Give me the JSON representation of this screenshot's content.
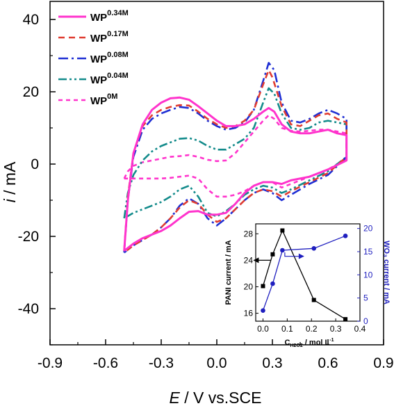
{
  "chart_data": {
    "type": "line",
    "xlabel_italic": "E",
    "xlabel_rest": " / V vs.SCE",
    "ylabel_italic": "i",
    "ylabel_rest": " / mA",
    "xlim": [
      -0.9,
      0.9
    ],
    "ylim": [
      -50,
      45
    ],
    "x_ticks": [
      "-0.9",
      "-0.6",
      "-0.3",
      "0.0",
      "0.3",
      "0.6",
      "0.9"
    ],
    "y_ticks": [
      "40",
      "20",
      "0",
      "-20",
      "-40"
    ],
    "legend_placement": "top-left",
    "series": [
      {
        "name_main": "WP",
        "name_sup": "0.34M",
        "color": "#ff33cc",
        "style": "solid",
        "points": [
          [
            -0.5,
            -24
          ],
          [
            -0.48,
            -10
          ],
          [
            -0.45,
            3
          ],
          [
            -0.4,
            11
          ],
          [
            -0.35,
            15
          ],
          [
            -0.3,
            17
          ],
          [
            -0.25,
            18.2
          ],
          [
            -0.2,
            18.4
          ],
          [
            -0.15,
            17.8
          ],
          [
            -0.1,
            16
          ],
          [
            -0.05,
            14
          ],
          [
            0.0,
            12
          ],
          [
            0.05,
            10.5
          ],
          [
            0.1,
            10.5
          ],
          [
            0.15,
            11
          ],
          [
            0.2,
            12.5
          ],
          [
            0.25,
            14.5
          ],
          [
            0.28,
            15.5
          ],
          [
            0.31,
            14.5
          ],
          [
            0.35,
            11
          ],
          [
            0.4,
            9
          ],
          [
            0.45,
            8.5
          ],
          [
            0.5,
            8.5
          ],
          [
            0.55,
            9
          ],
          [
            0.6,
            9.5
          ],
          [
            0.65,
            8.5
          ],
          [
            0.7,
            8
          ],
          [
            0.7,
            1
          ],
          [
            0.6,
            -1.5
          ],
          [
            0.5,
            -3.5
          ],
          [
            0.4,
            -4.5
          ],
          [
            0.35,
            -5.5
          ],
          [
            0.3,
            -5
          ],
          [
            0.25,
            -5
          ],
          [
            0.2,
            -6
          ],
          [
            0.15,
            -8
          ],
          [
            0.1,
            -11
          ],
          [
            0.05,
            -13.5
          ],
          [
            0.0,
            -14
          ],
          [
            -0.05,
            -14
          ],
          [
            -0.1,
            -13
          ],
          [
            -0.15,
            -13.2
          ],
          [
            -0.2,
            -15
          ],
          [
            -0.25,
            -17
          ],
          [
            -0.3,
            -18.5
          ],
          [
            -0.35,
            -19.5
          ],
          [
            -0.4,
            -20.5
          ],
          [
            -0.45,
            -22
          ],
          [
            -0.5,
            -24
          ]
        ]
      },
      {
        "name_main": "WP",
        "name_sup": "0.17M",
        "color": "#e03c31",
        "style": "dash",
        "points": [
          [
            -0.5,
            -24
          ],
          [
            -0.48,
            -9
          ],
          [
            -0.45,
            3
          ],
          [
            -0.4,
            10.5
          ],
          [
            -0.35,
            13.5
          ],
          [
            -0.3,
            15
          ],
          [
            -0.25,
            15.8
          ],
          [
            -0.2,
            16.3
          ],
          [
            -0.15,
            16.2
          ],
          [
            -0.1,
            14.5
          ],
          [
            -0.05,
            12.5
          ],
          [
            0.0,
            11
          ],
          [
            0.05,
            10
          ],
          [
            0.1,
            10.5
          ],
          [
            0.15,
            12
          ],
          [
            0.2,
            15
          ],
          [
            0.25,
            22
          ],
          [
            0.28,
            26
          ],
          [
            0.3,
            24
          ],
          [
            0.35,
            16
          ],
          [
            0.4,
            11
          ],
          [
            0.45,
            10.5
          ],
          [
            0.5,
            12
          ],
          [
            0.55,
            13.5
          ],
          [
            0.6,
            14
          ],
          [
            0.65,
            12.5
          ],
          [
            0.7,
            11.5
          ],
          [
            0.7,
            2
          ],
          [
            0.6,
            -2.5
          ],
          [
            0.5,
            -5
          ],
          [
            0.4,
            -7.5
          ],
          [
            0.35,
            -9
          ],
          [
            0.3,
            -7.5
          ],
          [
            0.25,
            -7
          ],
          [
            0.2,
            -8
          ],
          [
            0.15,
            -10
          ],
          [
            0.1,
            -12.5
          ],
          [
            0.05,
            -15
          ],
          [
            0.0,
            -16
          ],
          [
            -0.05,
            -14
          ],
          [
            -0.1,
            -11
          ],
          [
            -0.15,
            -10
          ],
          [
            -0.2,
            -12
          ],
          [
            -0.25,
            -15
          ],
          [
            -0.3,
            -17.5
          ],
          [
            -0.35,
            -19.5
          ],
          [
            -0.4,
            -21
          ],
          [
            -0.45,
            -22.5
          ],
          [
            -0.5,
            -24.5
          ]
        ]
      },
      {
        "name_main": "WP",
        "name_sup": "0.08M",
        "color": "#1f2fd4",
        "style": "dashdot",
        "points": [
          [
            -0.5,
            -24.5
          ],
          [
            -0.48,
            -10
          ],
          [
            -0.45,
            2
          ],
          [
            -0.4,
            9.5
          ],
          [
            -0.35,
            12.5
          ],
          [
            -0.3,
            14
          ],
          [
            -0.25,
            15
          ],
          [
            -0.2,
            15.8
          ],
          [
            -0.15,
            15.5
          ],
          [
            -0.1,
            14
          ],
          [
            -0.05,
            12
          ],
          [
            0.0,
            10.5
          ],
          [
            0.05,
            9.5
          ],
          [
            0.1,
            10
          ],
          [
            0.15,
            11.5
          ],
          [
            0.2,
            15
          ],
          [
            0.25,
            23
          ],
          [
            0.28,
            28
          ],
          [
            0.31,
            26
          ],
          [
            0.35,
            17
          ],
          [
            0.4,
            12
          ],
          [
            0.45,
            11.5
          ],
          [
            0.5,
            12.5
          ],
          [
            0.55,
            14
          ],
          [
            0.6,
            15
          ],
          [
            0.65,
            14
          ],
          [
            0.7,
            12.5
          ],
          [
            0.7,
            2
          ],
          [
            0.6,
            -3
          ],
          [
            0.5,
            -5.5
          ],
          [
            0.4,
            -8.5
          ],
          [
            0.35,
            -10
          ],
          [
            0.3,
            -8
          ],
          [
            0.25,
            -7
          ],
          [
            0.2,
            -8
          ],
          [
            0.15,
            -10
          ],
          [
            0.1,
            -12.5
          ],
          [
            0.05,
            -15
          ],
          [
            0.0,
            -17
          ],
          [
            -0.05,
            -15
          ],
          [
            -0.1,
            -11
          ],
          [
            -0.15,
            -9.5
          ],
          [
            -0.2,
            -11.5
          ],
          [
            -0.25,
            -15
          ],
          [
            -0.3,
            -17.5
          ],
          [
            -0.35,
            -19.5
          ],
          [
            -0.4,
            -21
          ],
          [
            -0.45,
            -22.5
          ],
          [
            -0.5,
            -24.5
          ]
        ]
      },
      {
        "name_main": "WP",
        "name_sup": "0.04M",
        "color": "#138b8b",
        "style": "dashdotdot",
        "points": [
          [
            -0.5,
            -15
          ],
          [
            -0.48,
            -8
          ],
          [
            -0.45,
            -3
          ],
          [
            -0.4,
            1
          ],
          [
            -0.35,
            3.5
          ],
          [
            -0.3,
            5
          ],
          [
            -0.25,
            6
          ],
          [
            -0.2,
            7
          ],
          [
            -0.15,
            7.2
          ],
          [
            -0.1,
            6.5
          ],
          [
            -0.05,
            5
          ],
          [
            0.0,
            4
          ],
          [
            0.05,
            4
          ],
          [
            0.1,
            5.5
          ],
          [
            0.15,
            7
          ],
          [
            0.2,
            10
          ],
          [
            0.25,
            17
          ],
          [
            0.28,
            21
          ],
          [
            0.31,
            19.5
          ],
          [
            0.35,
            14
          ],
          [
            0.4,
            10
          ],
          [
            0.45,
            9.5
          ],
          [
            0.5,
            10
          ],
          [
            0.55,
            11.5
          ],
          [
            0.6,
            12
          ],
          [
            0.65,
            11.5
          ],
          [
            0.7,
            11
          ],
          [
            0.7,
            2
          ],
          [
            0.6,
            -2
          ],
          [
            0.5,
            -4.5
          ],
          [
            0.4,
            -7
          ],
          [
            0.35,
            -8
          ],
          [
            0.3,
            -6.5
          ],
          [
            0.25,
            -6
          ],
          [
            0.2,
            -7
          ],
          [
            0.15,
            -8.5
          ],
          [
            0.1,
            -11
          ],
          [
            0.05,
            -13
          ],
          [
            0.0,
            -14.5
          ],
          [
            -0.05,
            -13.5
          ],
          [
            -0.1,
            -9
          ],
          [
            -0.15,
            -6
          ],
          [
            -0.2,
            -7
          ],
          [
            -0.25,
            -9
          ],
          [
            -0.3,
            -10.5
          ],
          [
            -0.35,
            -11.5
          ],
          [
            -0.4,
            -12.5
          ],
          [
            -0.45,
            -13.5
          ],
          [
            -0.5,
            -15
          ]
        ]
      },
      {
        "name_main": "WP",
        "name_sup": "0M",
        "color": "#ff33cc",
        "style": "shortdash",
        "points": [
          [
            -0.5,
            -4
          ],
          [
            -0.48,
            -2
          ],
          [
            -0.45,
            -0.5
          ],
          [
            -0.4,
            0.5
          ],
          [
            -0.35,
            1
          ],
          [
            -0.3,
            1.5
          ],
          [
            -0.25,
            2
          ],
          [
            -0.2,
            2.2
          ],
          [
            -0.15,
            2.5
          ],
          [
            -0.1,
            2
          ],
          [
            -0.05,
            1.2
          ],
          [
            0.0,
            0.8
          ],
          [
            0.05,
            1
          ],
          [
            0.1,
            3
          ],
          [
            0.15,
            6
          ],
          [
            0.2,
            9
          ],
          [
            0.25,
            12
          ],
          [
            0.28,
            13.5
          ],
          [
            0.31,
            12.5
          ],
          [
            0.35,
            10
          ],
          [
            0.4,
            9.2
          ],
          [
            0.45,
            9
          ],
          [
            0.5,
            9.2
          ],
          [
            0.55,
            9.5
          ],
          [
            0.6,
            9.5
          ],
          [
            0.65,
            9
          ],
          [
            0.7,
            8.5
          ],
          [
            0.7,
            1.5
          ],
          [
            0.6,
            -1.5
          ],
          [
            0.5,
            -3.5
          ],
          [
            0.4,
            -5.5
          ],
          [
            0.35,
            -6.5
          ],
          [
            0.3,
            -5
          ],
          [
            0.25,
            -5
          ],
          [
            0.2,
            -6
          ],
          [
            0.15,
            -7.5
          ],
          [
            0.1,
            -8.5
          ],
          [
            0.05,
            -9
          ],
          [
            0.0,
            -9
          ],
          [
            -0.05,
            -7
          ],
          [
            -0.1,
            -4
          ],
          [
            -0.15,
            -3.2
          ],
          [
            -0.2,
            -3.5
          ],
          [
            -0.25,
            -3.8
          ],
          [
            -0.3,
            -4
          ],
          [
            -0.35,
            -4
          ],
          [
            -0.4,
            -4
          ],
          [
            -0.45,
            -4
          ],
          [
            -0.5,
            -4
          ]
        ]
      }
    ],
    "inset": {
      "type": "line",
      "x_ticks": [
        "0.0",
        "0.1",
        "0.2",
        "0.3",
        "0.4"
      ],
      "xlim": [
        -0.03,
        0.4
      ],
      "y_left_ticks": [
        "16",
        "20",
        "24",
        "28"
      ],
      "y_left_lim": [
        14.8,
        29.5
      ],
      "y_right_ticks": [
        "0",
        "5",
        "10",
        "15",
        "20"
      ],
      "y_right_lim": [
        0,
        21
      ],
      "xlabel_main": "C",
      "xlabel_sub": "H2O2",
      "xlabel_rest": " / mol L",
      "xlabel_sup": "-1",
      "ylabel_left": "PANI current / mA",
      "ylabel_right": "WO₃ current / mA",
      "left_series": {
        "color": "#000000",
        "x": [
          0.0,
          0.04,
          0.08,
          0.21,
          0.34
        ],
        "y": [
          20.1,
          24.9,
          28.5,
          18.0,
          15.1
        ]
      },
      "right_series": {
        "color": "#1f1fbf",
        "x": [
          0.0,
          0.04,
          0.08,
          0.21,
          0.34
        ],
        "y": [
          2.3,
          8.1,
          15.3,
          15.7,
          18.4
        ]
      }
    }
  }
}
